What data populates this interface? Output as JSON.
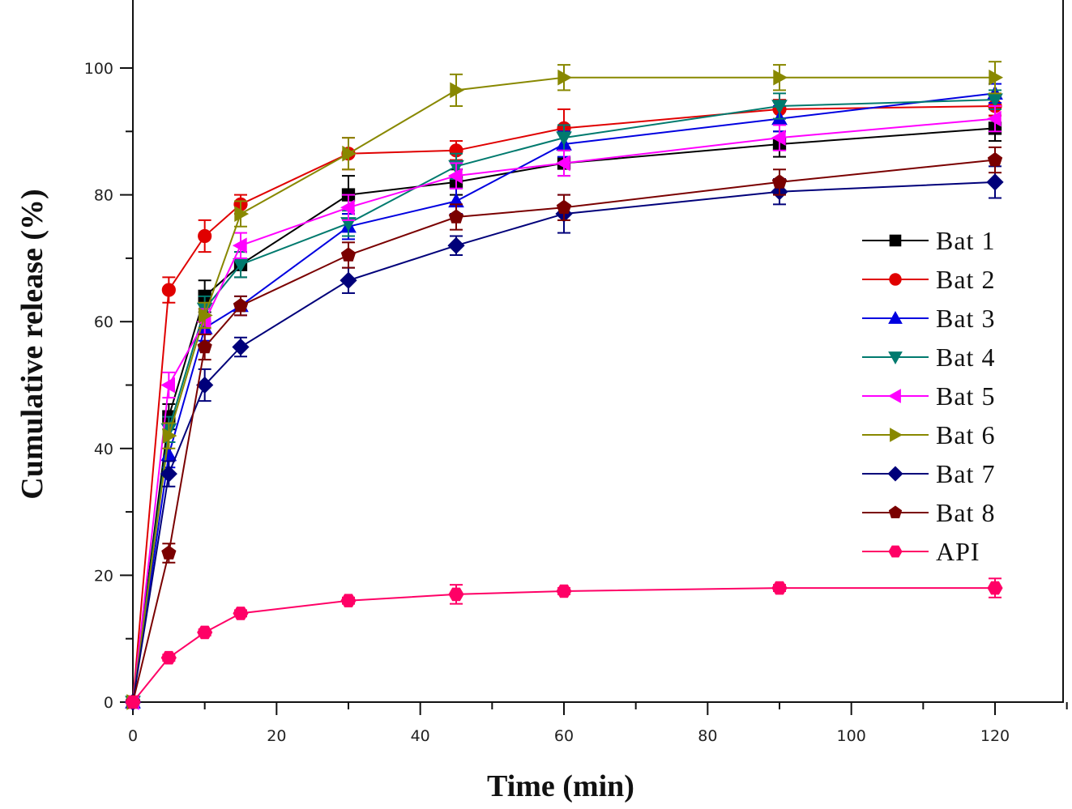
{
  "chart_data": {
    "type": "line",
    "title": "",
    "xlabel": "Time (min)",
    "ylabel": "Cumulative release (%)",
    "xlim": [
      0,
      130
    ],
    "ylim": [
      0,
      110
    ],
    "x_major_ticks": [
      0,
      20,
      40,
      60,
      80,
      100,
      120
    ],
    "x_minor_ticks": [
      10,
      30,
      50,
      70,
      90,
      110,
      130
    ],
    "y_major_ticks": [
      0,
      20,
      40,
      60,
      80,
      100
    ],
    "y_minor_ticks": [
      10,
      30,
      50,
      70,
      90
    ],
    "x_tick_labels": [
      "0",
      "20",
      "40",
      "60",
      "80",
      "100",
      "120"
    ],
    "y_tick_labels": [
      "0",
      "20",
      "40",
      "60",
      "80",
      "100"
    ],
    "grid": false,
    "legend_position": "right",
    "x": [
      0,
      5,
      10,
      15,
      30,
      45,
      60,
      90,
      120
    ],
    "series": [
      {
        "name": "Bat 1",
        "color": "#000000",
        "marker": "square",
        "values": [
          0,
          45,
          64,
          69,
          80,
          82,
          85,
          88,
          90.5
        ],
        "errors": [
          0,
          2,
          2.5,
          2,
          3,
          2,
          2,
          2,
          2
        ]
      },
      {
        "name": "Bat 2",
        "color": "#e00000",
        "marker": "circle",
        "values": [
          0,
          65,
          73.5,
          78.5,
          86.5,
          87,
          90.5,
          93.5,
          94
        ],
        "errors": [
          0,
          2,
          2.5,
          1.5,
          2.5,
          1.5,
          3,
          1.5,
          1.5
        ]
      },
      {
        "name": "Bat 3",
        "color": "#0000e0",
        "marker": "triangle-up",
        "values": [
          0,
          39,
          59,
          62.5,
          75,
          79,
          88,
          92,
          96
        ],
        "errors": [
          0,
          2,
          2,
          1.5,
          2,
          2,
          2,
          2,
          1.5
        ]
      },
      {
        "name": "Bat 4",
        "color": "#007a6e",
        "marker": "triangle-down",
        "values": [
          0,
          43,
          62,
          69,
          75.5,
          84.5,
          89,
          94,
          95
        ],
        "errors": [
          0,
          2,
          2,
          2,
          2,
          2,
          2,
          2,
          1.5
        ]
      },
      {
        "name": "Bat 5",
        "color": "#ff00ff",
        "marker": "triangle-left",
        "values": [
          0,
          50,
          60,
          72,
          78,
          83,
          85,
          89,
          92
        ],
        "errors": [
          0,
          2,
          2,
          2,
          2,
          2,
          2,
          2,
          2
        ]
      },
      {
        "name": "Bat 6",
        "color": "#888800",
        "marker": "triangle-right",
        "values": [
          0,
          42,
          61,
          77,
          86.5,
          96.5,
          98.5,
          98.5,
          98.5
        ],
        "errors": [
          0,
          2,
          2,
          2,
          2.5,
          2.5,
          2,
          2,
          2.5
        ]
      },
      {
        "name": "Bat 7",
        "color": "#00007a",
        "marker": "diamond",
        "values": [
          0,
          36,
          50,
          56,
          66.5,
          72,
          77,
          80.5,
          82
        ],
        "errors": [
          0,
          2,
          2.5,
          1.5,
          2,
          1.5,
          3,
          2,
          2.5
        ]
      },
      {
        "name": "Bat 8",
        "color": "#7a0000",
        "marker": "pentagon",
        "values": [
          0,
          23.5,
          56,
          62.5,
          70.5,
          76.5,
          78,
          82,
          85.5
        ],
        "errors": [
          0,
          1.5,
          2,
          1.5,
          2,
          2,
          2,
          2,
          2
        ]
      },
      {
        "name": "API",
        "color": "#ff0066",
        "marker": "hexagon",
        "values": [
          0,
          7,
          11,
          14,
          16,
          17,
          17.5,
          18,
          18
        ],
        "errors": [
          0,
          0.5,
          0.5,
          0.5,
          0.5,
          1.5,
          0.5,
          0.5,
          1.5
        ]
      }
    ]
  }
}
